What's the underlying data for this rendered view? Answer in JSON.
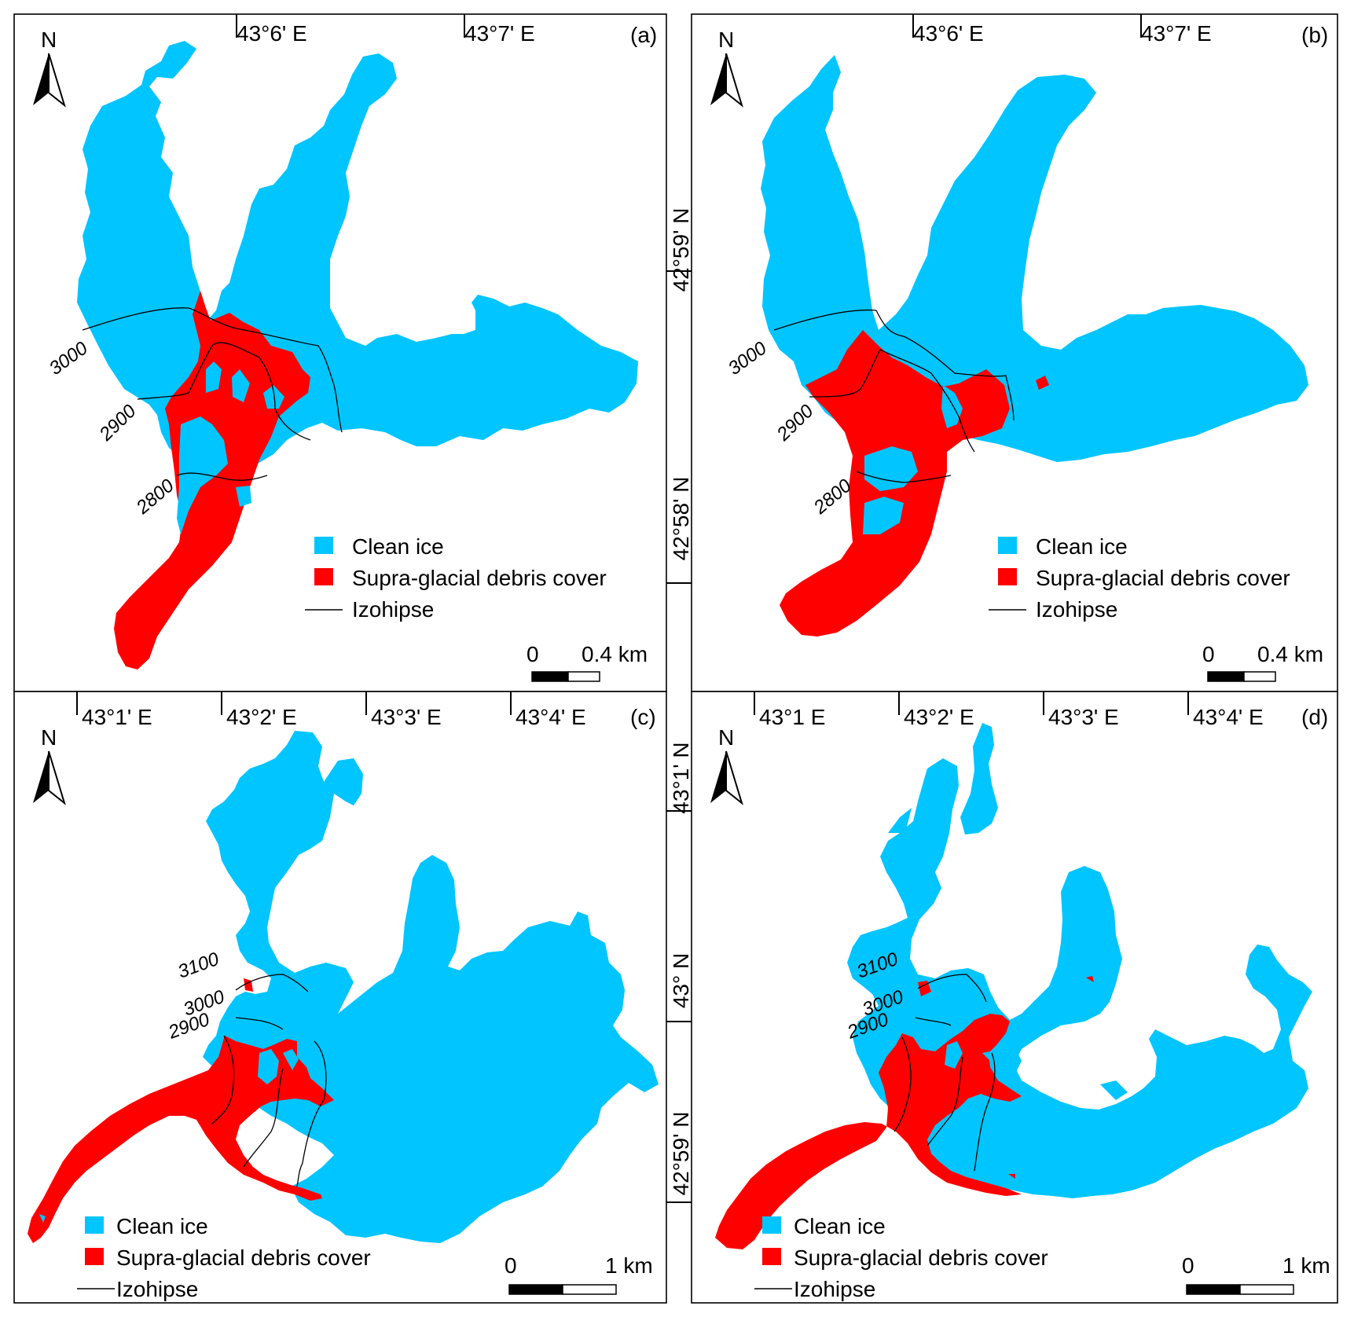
{
  "colors": {
    "clean_ice": "#00c5ff",
    "debris": "#ff0000",
    "contour": "#000000"
  },
  "north_arrow": {
    "label": "N",
    "icon": "north-arrow-icon"
  },
  "panels": {
    "a": {
      "tag": "(a)",
      "lon_labels": [
        "43°6' E",
        "43°7' E"
      ],
      "lat_labels": [],
      "contours": [
        "3000",
        "2900",
        "2800"
      ],
      "legend": {
        "ice": "Clean ice",
        "debris": "Supra-glacial debris cover",
        "contour": "Izohipse"
      },
      "scale": {
        "zero": "0",
        "max": "0.4 km"
      }
    },
    "b": {
      "tag": "(b)",
      "lon_labels": [
        "43°6' E",
        "43°7' E"
      ],
      "lat_labels": [
        "42°59' N",
        "42°58' N"
      ],
      "contours": [
        "3000",
        "2900",
        "2800"
      ],
      "legend": {
        "ice": "Clean ice",
        "debris": "Supra-glacial debris cover",
        "contour": "Izohipse"
      },
      "scale": {
        "zero": "0",
        "max": "0.4 km"
      }
    },
    "c": {
      "tag": "(c)",
      "lon_labels": [
        "43°1' E",
        "43°2' E",
        "43°3' E",
        "43°4' E"
      ],
      "lat_labels": [],
      "contours": [
        "3100",
        "3000",
        "2900"
      ],
      "legend": {
        "ice": "Clean ice",
        "debris": "Supra-glacial debris cover",
        "contour": "Izohipse"
      },
      "scale": {
        "zero": "0",
        "max": "1 km"
      }
    },
    "d": {
      "tag": "(d)",
      "lon_labels": [
        "43°1 E",
        "43°2' E",
        "43°3' E",
        "43°4' E"
      ],
      "lat_labels": [
        "43°1' N",
        "43° N",
        "42°59' N"
      ],
      "contours": [
        "3100",
        "3000",
        "2900"
      ],
      "legend": {
        "ice": "Clean ice",
        "debris": "Supra-glacial debris cover",
        "contour": "Izohipse"
      },
      "scale": {
        "zero": "0",
        "max": "1 km"
      }
    }
  }
}
